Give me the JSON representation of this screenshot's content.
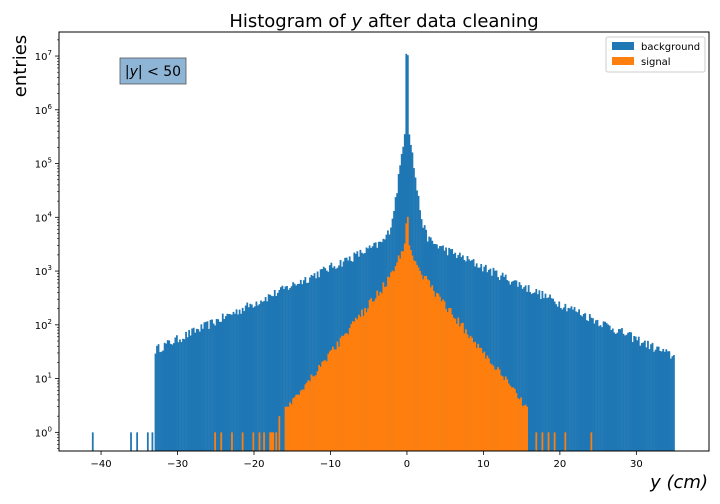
{
  "chart_data": {
    "type": "histogram",
    "title": "Histogram of y after data cleaning",
    "title_parts": {
      "prefix": "Histogram of ",
      "var": "y",
      "suffix": " after data cleaning"
    },
    "xlabel": "y (cm)",
    "xlabel_parts": {
      "var": "y",
      "unit": "(cm)"
    },
    "ylabel": "entries",
    "xlim": [
      -45.5,
      39.5
    ],
    "ylim": [
      0.45,
      28000000
    ],
    "yscale": "log",
    "x_ticks": [
      -40,
      -30,
      -20,
      -10,
      0,
      10,
      20,
      30
    ],
    "x_tick_labels": [
      "−40",
      "−30",
      "−20",
      "−10",
      "0",
      "10",
      "20",
      "30"
    ],
    "y_ticks": [
      1,
      10,
      100,
      1000,
      10000,
      100000,
      1000000,
      10000000
    ],
    "y_tick_labels": [
      {
        "base": "10",
        "exp": "0"
      },
      {
        "base": "10",
        "exp": "1"
      },
      {
        "base": "10",
        "exp": "2"
      },
      {
        "base": "10",
        "exp": "3"
      },
      {
        "base": "10",
        "exp": "4"
      },
      {
        "base": "10",
        "exp": "5"
      },
      {
        "base": "10",
        "exp": "6"
      },
      {
        "base": "10",
        "exp": "7"
      }
    ],
    "grid": false,
    "legend_position": "upper right",
    "annotation": {
      "text": "|y| < 50",
      "parts": {
        "pre": "|",
        "var": "y",
        "post": "| < 50"
      },
      "position": "upper left"
    },
    "bins": {
      "min": -50,
      "max": 50,
      "count": 500,
      "width": 0.2
    },
    "series": [
      {
        "name": "background",
        "color": "#1f77b4",
        "shape": {
          "type": "exponential-core-tail",
          "peak": 12000000,
          "p1": 900000,
          "scale1": 0.38,
          "p2": 5500,
          "scale2": 6.5,
          "range": [
            -33,
            35
          ]
        },
        "sparse_bins": [
          -41.1,
          -36.1,
          -35.3,
          -33.9,
          -33.3
        ]
      },
      {
        "name": "signal",
        "color": "#ff7f0e",
        "shape": {
          "type": "exponential-core-tail",
          "peak": 9000,
          "p1": 3000,
          "scale1": 0.6,
          "p2": 1800,
          "scale2": 2.45,
          "range": [
            -18,
            16
          ]
        },
        "sparse_bins": [
          -25.1,
          -24.3,
          -22.9,
          -21.5,
          -20.1,
          -19.3,
          -18.7,
          16.9,
          17.7,
          18.5,
          19.3,
          20.7,
          24.1
        ]
      }
    ]
  }
}
